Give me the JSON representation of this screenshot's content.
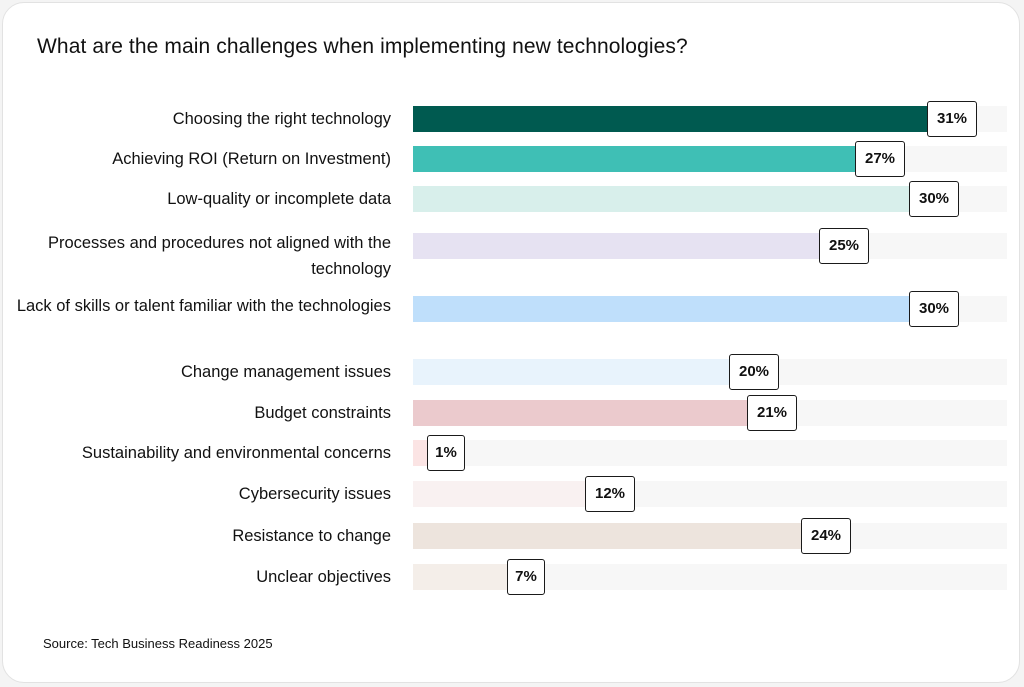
{
  "chart_data": {
    "type": "bar",
    "orientation": "horizontal",
    "title": "What are the main challenges when implementing new technologies?",
    "source": "Source: Tech Business Readiness 2025",
    "xlim": [
      0,
      33
    ],
    "categories": [
      "Choosing the right technology",
      "Achieving ROI (Return on Investment)",
      "Low-quality or incomplete data",
      "Processes and procedures not aligned with the technology",
      "Lack of skills or talent familiar with the technologies",
      "Change management issues",
      "Budget constraints",
      "Sustainability and environmental concerns",
      "Cybersecurity issues",
      "Resistance to change",
      "Unclear objectives"
    ],
    "values": [
      31,
      27,
      30,
      25,
      30,
      20,
      21,
      1,
      12,
      24,
      7
    ],
    "value_labels": [
      "31%",
      "27%",
      "30%",
      "25%",
      "30%",
      "20%",
      "21%",
      "1%",
      "12%",
      "24%",
      "7%"
    ],
    "colors": [
      "#005a50",
      "#3fbfb5",
      "#d8efeb",
      "#e6e2f2",
      "#bfdffb",
      "#e8f3fc",
      "#ebcacd",
      "#fbe4e4",
      "#f9f1f1",
      "#ede4dd",
      "#f4eee9"
    ],
    "track_color": "#f7f7f7",
    "grid": false,
    "legend": "none"
  }
}
